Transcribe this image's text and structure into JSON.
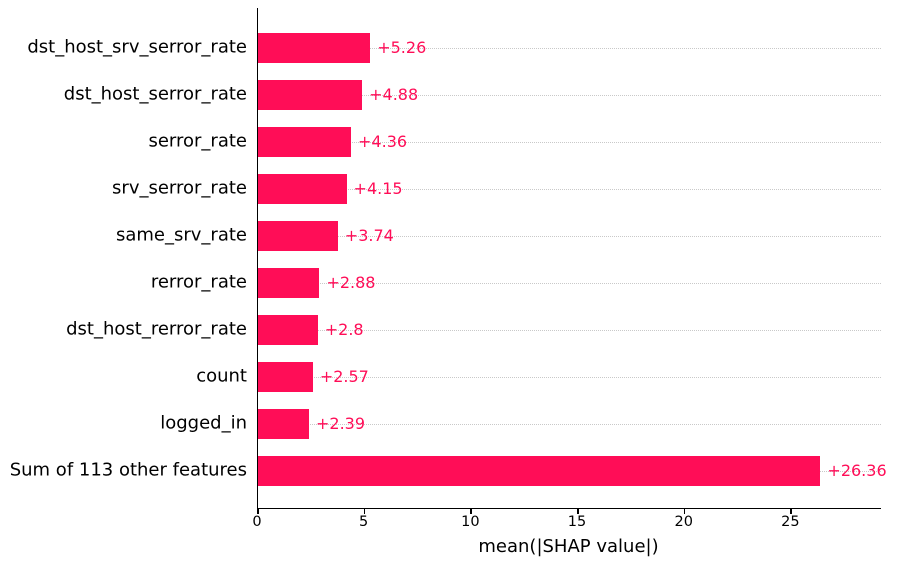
{
  "chart_data": {
    "type": "bar",
    "orientation": "horizontal",
    "title": "",
    "xlabel": "mean(|SHAP value|)",
    "ylabel": "",
    "categories": [
      "dst_host_srv_serror_rate",
      "dst_host_serror_rate",
      "serror_rate",
      "srv_serror_rate",
      "same_srv_rate",
      "rerror_rate",
      "dst_host_rerror_rate",
      "count",
      "logged_in",
      "Sum of 113 other features"
    ],
    "values": [
      5.26,
      4.88,
      4.36,
      4.15,
      3.74,
      2.88,
      2.8,
      2.57,
      2.39,
      26.36
    ],
    "value_labels": [
      "+5.26",
      "+4.88",
      "+4.36",
      "+4.15",
      "+3.74",
      "+2.88",
      "+2.8",
      "+2.57",
      "+2.39",
      "+26.36"
    ],
    "xticks": [
      0,
      5,
      10,
      15,
      20,
      25
    ],
    "xtick_labels": [
      "0",
      "5",
      "10",
      "15",
      "20",
      "25"
    ],
    "xlim": [
      0,
      29.2
    ],
    "grid": "horizontal-dotted",
    "legend": "none",
    "colors": {
      "bar": "#ff0d57",
      "value_label": "#ff0d57",
      "grid": "#c9c9c9",
      "axis": "#000000",
      "tick_text": "#000000"
    }
  }
}
